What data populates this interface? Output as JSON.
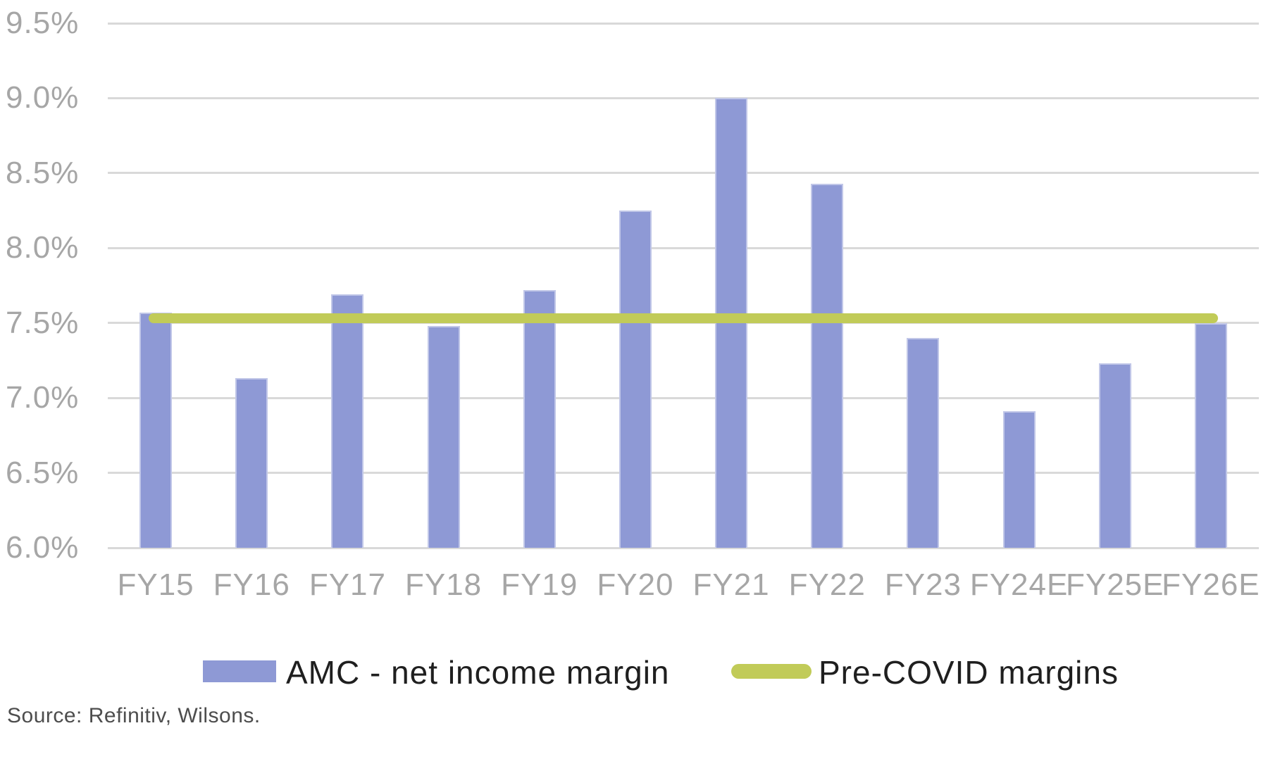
{
  "chart_data": {
    "type": "bar",
    "title": "",
    "xlabel": "",
    "ylabel": "",
    "categories": [
      "FY15",
      "FY16",
      "FY17",
      "FY18",
      "FY19",
      "FY20",
      "FY21",
      "FY22",
      "FY23",
      "FY24E",
      "FY25E",
      "FY26E"
    ],
    "series": [
      {
        "name": "AMC - net income margin",
        "type": "bar",
        "color": "#8e99d5",
        "values": [
          7.57,
          7.13,
          7.69,
          7.48,
          7.72,
          8.25,
          9.0,
          8.43,
          7.4,
          6.91,
          7.23,
          7.5
        ]
      },
      {
        "name": "Pre-COVID margins",
        "type": "line",
        "color": "#c1cb58",
        "values": [
          7.53,
          7.53,
          7.53,
          7.53,
          7.53,
          7.53,
          7.53,
          7.53,
          7.53,
          7.53,
          7.53,
          7.53
        ]
      }
    ],
    "ylim": [
      6.0,
      9.5
    ],
    "yticks": [
      {
        "value": 9.5,
        "label": "9.5%"
      },
      {
        "value": 9.0,
        "label": "9.0%"
      },
      {
        "value": 8.5,
        "label": "8.5%"
      },
      {
        "value": 8.0,
        "label": "8.0%"
      },
      {
        "value": 7.5,
        "label": "7.5%"
      },
      {
        "value": 7.0,
        "label": "7.0%"
      },
      {
        "value": 6.5,
        "label": "6.5%"
      },
      {
        "value": 6.0,
        "label": "6.0%"
      }
    ],
    "grid": true,
    "legend_position": "bottom"
  },
  "colors": {
    "background": "#ffffff",
    "bar_fill": "#8e99d5",
    "line": "#c1cb58",
    "gridline": "#d9d9d9",
    "axis_label": "#a6a6a6",
    "legend_text": "#1f1f1f",
    "source_text": "#4d4d4d"
  },
  "footer": {
    "source_note": "Source: Refinitiv, Wilsons."
  }
}
